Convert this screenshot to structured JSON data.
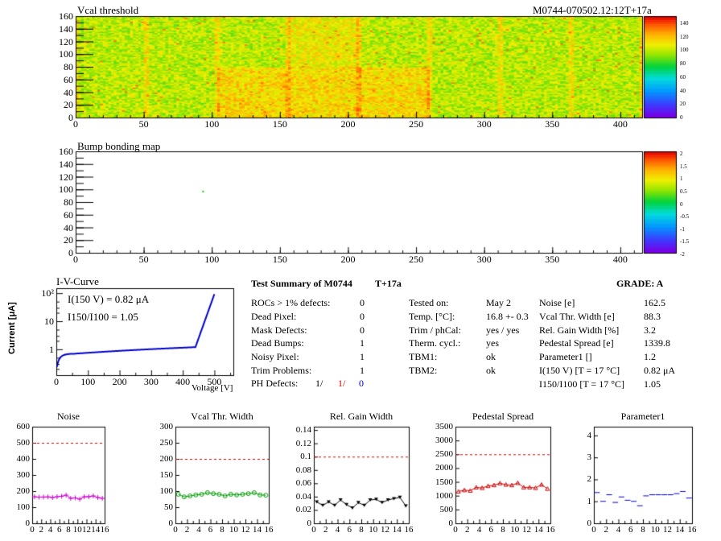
{
  "top_map": {
    "title": "Vcal threshold",
    "module_label": "M0744-070502.12:12T+17a",
    "y_ticks": [
      "160",
      "140",
      "120",
      "100",
      "80",
      "60",
      "40",
      "20",
      "0"
    ],
    "x_ticks": [
      "0",
      "50",
      "100",
      "150",
      "200",
      "250",
      "300",
      "350",
      "400"
    ],
    "scale_ticks": [
      "140",
      "120",
      "100",
      "80",
      "60",
      "40",
      "20",
      "0"
    ],
    "z_range": [
      0,
      150
    ],
    "x_range": [
      0,
      416
    ],
    "y_range": [
      0,
      160
    ]
  },
  "bump_map": {
    "title": "Bump bonding map",
    "y_ticks": [
      "160",
      "140",
      "120",
      "100",
      "80",
      "60",
      "40",
      "20",
      "0"
    ],
    "x_ticks": [
      "0",
      "50",
      "100",
      "150",
      "200",
      "250",
      "300",
      "350",
      "400"
    ],
    "scale_ticks": [
      "2",
      "1.5",
      "1",
      "0.5",
      "0",
      "-0.5",
      "-1",
      "-1.5",
      "-2"
    ],
    "z_range": [
      -2,
      2
    ]
  },
  "iv_curve": {
    "title": "I-V-Curve",
    "y_axis_label": "Current [μA]",
    "x_axis_label": "Voltage [V]",
    "y_ticks": [
      "10²",
      "10",
      "1"
    ],
    "x_ticks": [
      "0",
      "100",
      "200",
      "300",
      "400",
      "500"
    ],
    "annot1": "I(150 V) = 0.82 μA",
    "annot2": "I150/I100 = 1.05"
  },
  "summary": {
    "title": "Test Summary of M0744",
    "temp_tag": "T+17a",
    "grade": "GRADE:  A",
    "left_rows": [
      {
        "label": "ROCs > 1% defects:",
        "value": "0"
      },
      {
        "label": "Dead Pixel:",
        "value": "0"
      },
      {
        "label": "Mask Defects:",
        "value": "0"
      },
      {
        "label": "Dead Bumps:",
        "value": "1"
      },
      {
        "label": "Noisy Pixel:",
        "value": "1"
      },
      {
        "label": "Trim Problems:",
        "value": "1"
      }
    ],
    "ph_defects": {
      "label": "PH Defects:",
      "v1": "1/",
      "v2": "1/",
      "v3": "0"
    },
    "mid_rows": [
      {
        "label": "Tested on:",
        "value": "May 2"
      },
      {
        "label": "Temp. [°C]:",
        "value": "16.8 +- 0.3"
      },
      {
        "label": "Trim / phCal:",
        "value": "yes / yes"
      },
      {
        "label": "Therm. cycl.:",
        "value": "yes"
      },
      {
        "label": "TBM1:",
        "value": "ok"
      },
      {
        "label": "TBM2:",
        "value": "ok"
      }
    ],
    "right_rows": [
      {
        "label": "Noise [e]",
        "value": "162.5"
      },
      {
        "label": "Vcal Thr. Width [e]",
        "value": "88.3"
      },
      {
        "label": "Rel. Gain Width [%]",
        "value": "3.2"
      },
      {
        "label": "Pedestal Spread [e]",
        "value": "1339.8"
      },
      {
        "label": "Parameter1 []",
        "value": "1.2"
      },
      {
        "label": "I(150 V) [T = 17 °C]",
        "value": "0.82 μA"
      },
      {
        "label": "I150/I100  [T = 17 °C]",
        "value": "1.05"
      }
    ]
  },
  "chart_data": [
    {
      "type": "line",
      "title": "Noise",
      "color": "#cc00cc",
      "marker": "plus",
      "ylim": [
        0,
        600
      ],
      "y_ticks": [
        "600",
        "500",
        "400",
        "300",
        "200",
        "100",
        "0"
      ],
      "x_ticks": [
        "0",
        "2",
        "4",
        "6",
        "8",
        "10",
        "12",
        "14",
        "16"
      ],
      "limit": 500,
      "x": [
        0,
        1,
        2,
        3,
        4,
        5,
        6,
        7,
        8,
        9,
        10,
        11,
        12,
        13,
        14,
        15
      ],
      "values": [
        165,
        162,
        163,
        164,
        160,
        165,
        168,
        175,
        155,
        158,
        150,
        165,
        165,
        170,
        160,
        155
      ]
    },
    {
      "type": "line",
      "title": "Vcal Thr. Width",
      "color": "#009900",
      "marker": "circle",
      "ylim": [
        0,
        300
      ],
      "y_ticks": [
        "300",
        "250",
        "200",
        "150",
        "100",
        "50",
        "0"
      ],
      "x_ticks": [
        "0",
        "2",
        "4",
        "6",
        "8",
        "10",
        "12",
        "14",
        "16"
      ],
      "limit": 200,
      "x": [
        0,
        1,
        2,
        3,
        4,
        5,
        6,
        7,
        8,
        9,
        10,
        11,
        12,
        13,
        14,
        15
      ],
      "values": [
        90,
        82,
        85,
        88,
        90,
        95,
        92,
        90,
        85,
        90,
        88,
        90,
        92,
        95,
        88,
        87
      ]
    },
    {
      "type": "line",
      "title": "Rel. Gain Width",
      "color": "#000000",
      "marker": "triangle-down",
      "ylim": [
        0,
        0.145
      ],
      "y_ticks": [
        "0.14",
        "0.12",
        "0.1",
        "0.08",
        "0.06",
        "0.04",
        "0.02",
        "0"
      ],
      "x_ticks": [
        "0",
        "2",
        "4",
        "6",
        "8",
        "10",
        "12",
        "14",
        "16"
      ],
      "limit": 0.1,
      "x": [
        0,
        1,
        2,
        3,
        4,
        5,
        6,
        7,
        8,
        9,
        10,
        11,
        12,
        13,
        14,
        15
      ],
      "values": [
        0.032,
        0.027,
        0.032,
        0.027,
        0.035,
        0.028,
        0.023,
        0.031,
        0.027,
        0.035,
        0.036,
        0.031,
        0.035,
        0.037,
        0.039,
        0.026
      ]
    },
    {
      "type": "line",
      "title": "Pedestal Spread",
      "color": "#cc0000",
      "marker": "triangle-up",
      "ylim": [
        0,
        3500
      ],
      "y_ticks": [
        "3500",
        "3000",
        "2500",
        "2000",
        "1500",
        "1000",
        "500",
        "0"
      ],
      "x_ticks": [
        "0",
        "2",
        "4",
        "6",
        "8",
        "10",
        "12",
        "14",
        "16"
      ],
      "limit": 2500,
      "x": [
        0,
        1,
        2,
        3,
        4,
        5,
        6,
        7,
        8,
        9,
        10,
        11,
        12,
        13,
        14,
        15
      ],
      "values": [
        1150,
        1200,
        1180,
        1300,
        1280,
        1350,
        1380,
        1450,
        1400,
        1380,
        1460,
        1300,
        1300,
        1280,
        1400,
        1250
      ]
    },
    {
      "type": "scatter",
      "title": "Parameter1",
      "color": "#0000cc",
      "marker": "hbar",
      "ylim": [
        0,
        4.4
      ],
      "y_ticks": [
        "4",
        "3",
        "2",
        "1",
        "0"
      ],
      "x_ticks": [
        "0",
        "2",
        "4",
        "6",
        "8",
        "10",
        "12",
        "14",
        "16"
      ],
      "limit": null,
      "x": [
        0,
        1,
        2,
        3,
        4,
        5,
        6,
        7,
        8,
        9,
        10,
        11,
        12,
        13,
        14,
        15
      ],
      "values": [
        1.4,
        1.0,
        1.3,
        0.95,
        1.2,
        1.05,
        1.0,
        0.8,
        1.25,
        1.3,
        1.3,
        1.3,
        1.3,
        1.35,
        1.45,
        1.15
      ]
    }
  ]
}
